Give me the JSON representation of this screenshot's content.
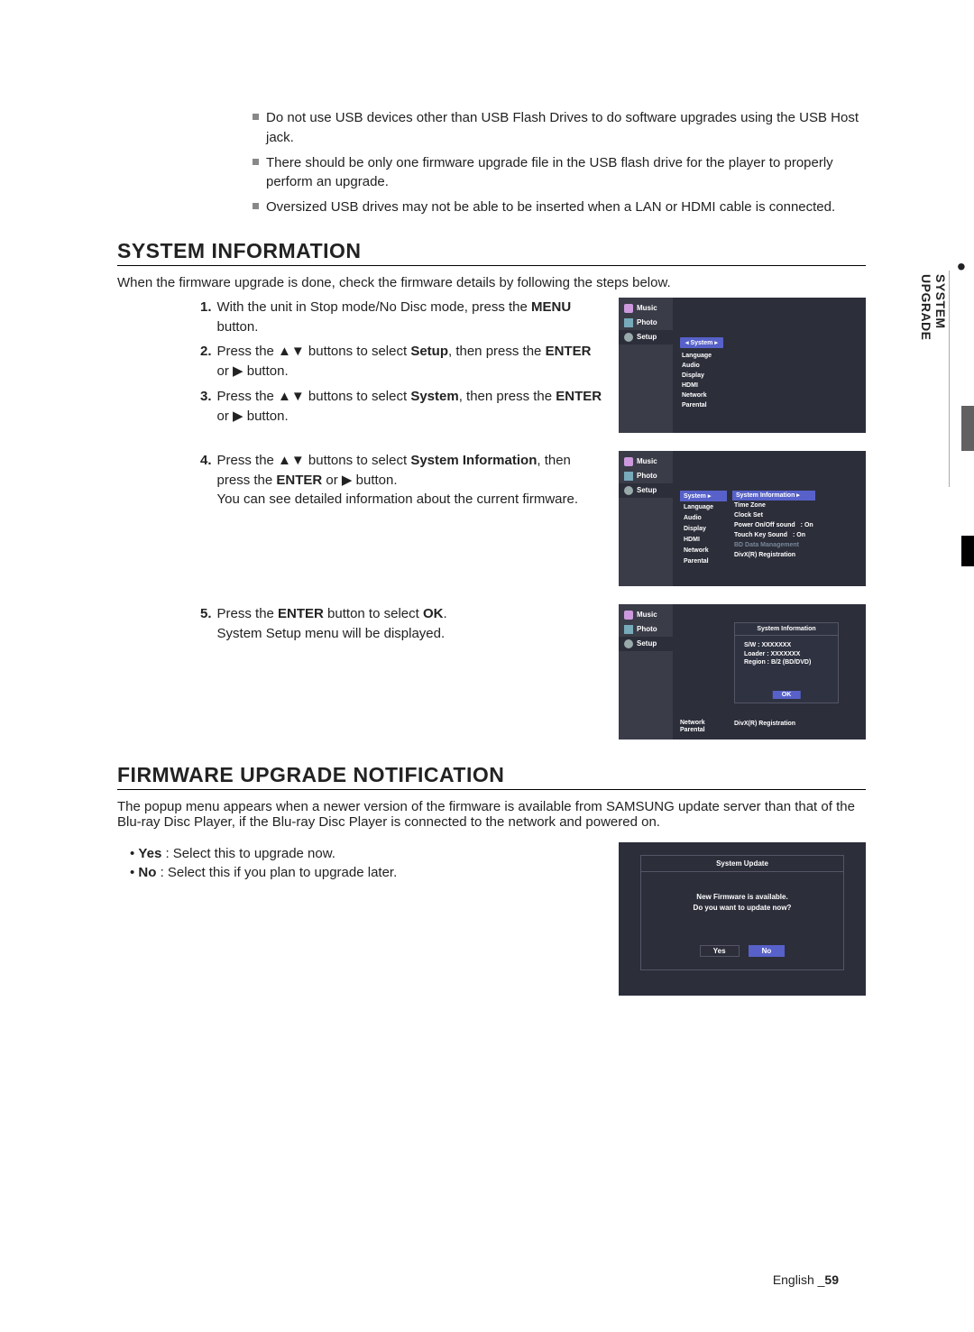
{
  "colors": {
    "panel_bg": "#2c2e3a",
    "panel_side": "#3a3c48",
    "accent": "#5761c9",
    "dim": "#789"
  },
  "notes": [
    "Do not use USB devices other than USB Flash Drives to do software upgrades using the USB Host jack.",
    "There should be only one firmware upgrade file in the USB flash drive for the player to properly perform an upgrade.",
    "Oversized USB drives may not be able to be inserted when a LAN or HDMI cable is connected."
  ],
  "section1": {
    "title": "SYSTEM INFORMATION",
    "intro": "When the firmware upgrade is done, check the firmware details by following the steps below.",
    "steps_a": [
      {
        "n": "1.",
        "html": "With the unit in Stop mode/No Disc mode, press the <b>MENU</b> button."
      },
      {
        "n": "2.",
        "html": "Press the <span class='arrow'>▲▼</span> buttons to select <b>Setup</b>, then press the <b>ENTER</b> or <span class='arrow'>▶</span> button."
      },
      {
        "n": "3.",
        "html": "Press the <span class='arrow'>▲▼</span> buttons to select <b>System</b>, then press the <b>ENTER</b> or <span class='arrow'>▶</span> button."
      }
    ],
    "steps_b": [
      {
        "n": "4.",
        "html": "Press the <span class='arrow'>▲▼</span> buttons to select <b>System Information</b>, then press the <b>ENTER</b> or <span class='arrow'>▶</span> button.<br>You can see detailed information about the current firmware."
      }
    ],
    "steps_c": [
      {
        "n": "5.",
        "html": "Press the <b>ENTER</b> button to select <b>OK</b>.<br>System Setup menu will be displayed."
      }
    ]
  },
  "panel_side_items": [
    {
      "icon": "music",
      "label": "Music"
    },
    {
      "icon": "photo",
      "label": "Photo"
    },
    {
      "icon": "gear",
      "label": "Setup",
      "active": true
    }
  ],
  "panel1": {
    "selected": "System",
    "menu": [
      "Language",
      "Audio",
      "Display",
      "HDMI",
      "Network",
      "Parental"
    ]
  },
  "panel2": {
    "left_menu": [
      "System",
      "Language",
      "Audio",
      "Display",
      "HDMI",
      "Network",
      "Parental"
    ],
    "right_menu": [
      {
        "label": "System Information",
        "sel": true
      },
      {
        "label": "Time Zone"
      },
      {
        "label": "Clock Set"
      },
      {
        "label": "Power On/Off sound",
        "val": ": On"
      },
      {
        "label": "Touch Key Sound",
        "val": ": On"
      },
      {
        "label": "BD Data Management",
        "dim": true
      },
      {
        "label": "DivX(R) Registration"
      }
    ]
  },
  "panel3": {
    "dialog_title": "System Information",
    "info_lines": [
      "S/W : XXXXXXX",
      "Loader : XXXXXXX",
      "Region : B/2 (BD/DVD)"
    ],
    "ok": "OK",
    "below": [
      {
        "l": "Network",
        "r": ""
      },
      {
        "l": "Parental",
        "r": "DivX(R) Registration"
      }
    ]
  },
  "section2": {
    "title": "FIRMWARE UPGRADE NOTIFICATION",
    "intro": "The popup menu appears when a newer version of the firmware is available from SAMSUNG update server than that of the Blu-ray Disc Player, if the Blu-ray Disc Player is connected to the network and powered on.",
    "bullets": [
      {
        "label": "Yes",
        "text": " : Select this to upgrade now."
      },
      {
        "label": "No",
        "text": " : Select this if you plan to upgrade later."
      }
    ]
  },
  "panel4": {
    "title": "System Update",
    "line1": "New Firmware is available.",
    "line2": "Do you want to update now?",
    "yes": "Yes",
    "no": "No"
  },
  "side_tab": "SYSTEM UPGRADE",
  "footer": {
    "lang": "English",
    "page": "59"
  }
}
